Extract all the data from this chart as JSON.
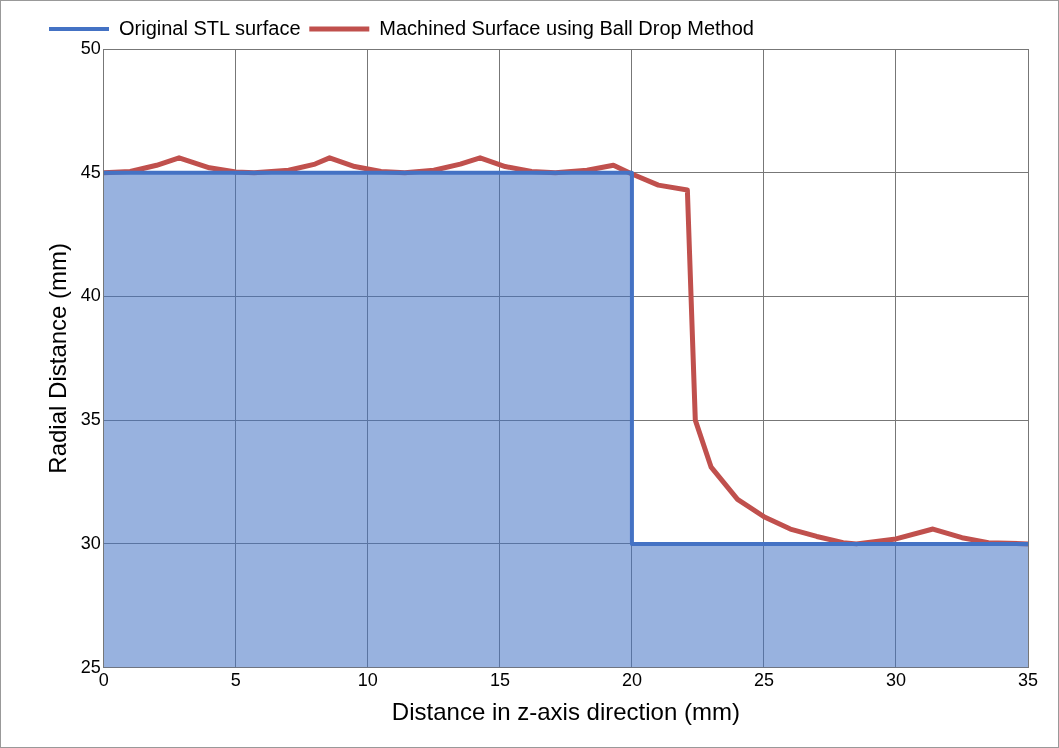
{
  "chart_data": {
    "type": "line",
    "xlabel": "Distance in z-axis direction (mm)",
    "ylabel": "Radial Distance (mm)",
    "xlim": [
      0,
      35
    ],
    "xticks": [
      0,
      5,
      10,
      15,
      20,
      25,
      30,
      35
    ],
    "ylim": [
      25,
      50
    ],
    "yticks": [
      25,
      30,
      35,
      40,
      45,
      50
    ],
    "grid": true,
    "legend": "top left",
    "series": [
      {
        "name": "Original STL surface",
        "type": "area",
        "color": "#4472c4",
        "x": [
          0,
          20,
          20,
          35
        ],
        "values": [
          45,
          45,
          30,
          30
        ]
      },
      {
        "name": "Machined Surface using Ball Drop Method",
        "type": "line",
        "color": "#c0504d",
        "x": [
          0,
          1,
          2,
          2.85,
          4,
          5,
          5.7,
          7,
          8,
          8.55,
          9.5,
          10.5,
          11.4,
          12.5,
          13.5,
          14.25,
          15.2,
          16.2,
          17.1,
          18.3,
          19.3,
          20,
          21,
          22.1,
          22.4,
          23,
          24,
          25,
          26,
          27,
          28,
          28.5,
          30,
          31.4,
          32.5,
          33.5,
          35
        ],
        "values": [
          45,
          45.05,
          45.3,
          45.6,
          45.2,
          45.03,
          45,
          45.1,
          45.35,
          45.6,
          45.25,
          45.05,
          45,
          45.1,
          45.35,
          45.6,
          45.25,
          45.05,
          45,
          45.1,
          45.3,
          44.95,
          44.5,
          44.3,
          35,
          33.1,
          31.8,
          31.1,
          30.6,
          30.3,
          30.05,
          30,
          30.2,
          30.6,
          30.25,
          30.05,
          30
        ]
      }
    ]
  }
}
